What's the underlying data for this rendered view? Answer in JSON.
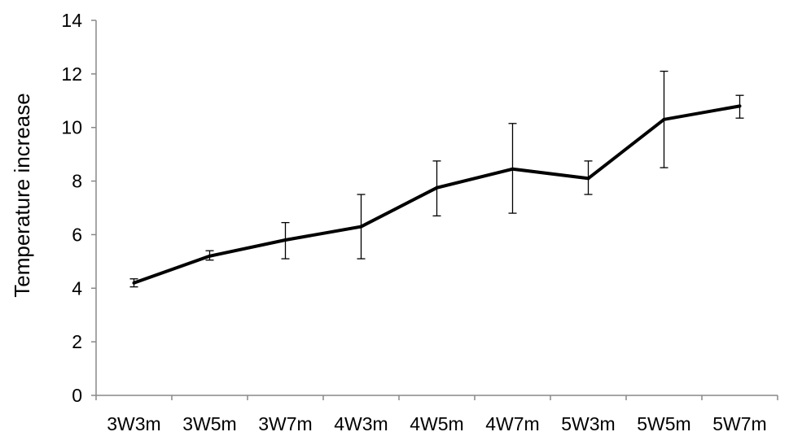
{
  "chart_data": {
    "type": "line",
    "title": "",
    "xlabel": "",
    "ylabel": "Temperature increase",
    "categories": [
      "3W3m",
      "3W5m",
      "3W7m",
      "4W3m",
      "4W5m",
      "4W7m",
      "5W3m",
      "5W5m",
      "5W7m"
    ],
    "series": [
      {
        "values": [
          4.2,
          5.2,
          5.8,
          6.3,
          7.75,
          8.45,
          8.1,
          10.3,
          10.8
        ],
        "error_low": [
          4.05,
          5.05,
          5.1,
          5.1,
          6.7,
          6.8,
          7.5,
          8.5,
          10.35
        ],
        "error_high": [
          4.35,
          5.4,
          6.45,
          7.5,
          8.75,
          10.15,
          8.75,
          12.1,
          11.2
        ],
        "color": "#000000"
      }
    ],
    "ylim": [
      0,
      14
    ],
    "yticks": [
      0,
      2,
      4,
      6,
      8,
      10,
      12,
      14
    ],
    "grid": false,
    "legend": "none"
  }
}
